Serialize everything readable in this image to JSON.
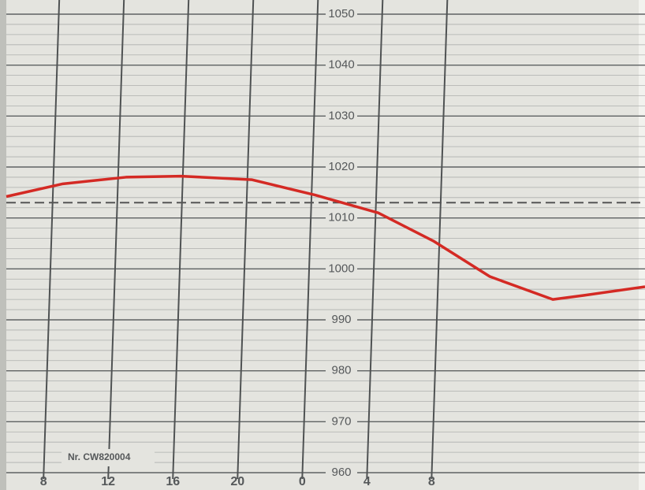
{
  "chart_data": {
    "type": "line",
    "note": "Nr. CW820004",
    "x": [
      5.7,
      9.2,
      13.1,
      16.5,
      20.9,
      24.8,
      28.7,
      32.1,
      35.6,
      39.5,
      41.4,
      45.2
    ],
    "series": [
      {
        "color": "#d42a24",
        "values": [
          1014.2,
          1016.7,
          1018,
          1018.2,
          1017.5,
          1014.5,
          1011,
          1005.5,
          998.5,
          994,
          994.8,
          996.5
        ]
      }
    ],
    "xlim": [
      5.7,
      45.2
    ],
    "xticks": [
      8,
      12,
      16,
      20,
      {
        "value": 24,
        "label": "0"
      },
      {
        "value": 28,
        "label": "4"
      },
      {
        "value": 32,
        "label": "8"
      }
    ],
    "ylim": [
      960,
      1050
    ],
    "yticks": [
      960,
      970,
      980,
      990,
      1000,
      1010,
      1020,
      1030,
      1040,
      1050
    ],
    "reference_line": 1013,
    "minor_grid_step": 2,
    "grid": true
  }
}
